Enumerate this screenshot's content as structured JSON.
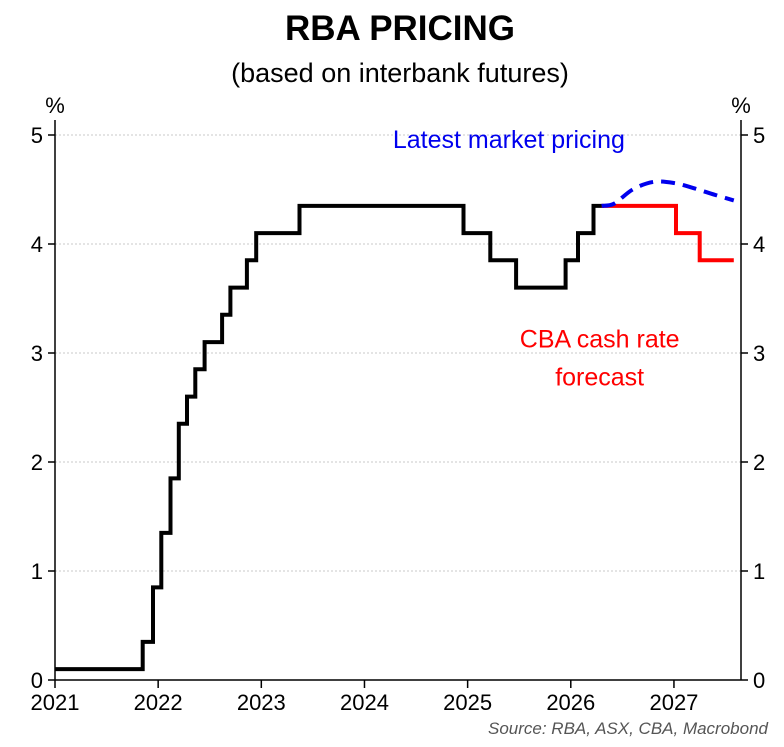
{
  "chart_data": {
    "type": "line",
    "title": "RBA PRICING",
    "subtitle": "(based on interbank futures)",
    "ylabel_left": "%",
    "ylabel_right": "%",
    "ylim": [
      0,
      5
    ],
    "yticks": [
      0,
      1,
      2,
      3,
      4,
      5
    ],
    "xlim": [
      2021.0,
      2027.65
    ],
    "xticks": [
      {
        "label": "2021",
        "value": 2021.0
      },
      {
        "label": "2022",
        "value": 2022.0
      },
      {
        "label": "2023",
        "value": 2023.0
      },
      {
        "label": "2024",
        "value": 2024.0
      },
      {
        "label": "2025",
        "value": 2025.0
      },
      {
        "label": "2026",
        "value": 2026.0
      },
      {
        "label": "2027",
        "value": 2027.0
      }
    ],
    "grid": "horizontal-dotted",
    "source": "Source: RBA, ASX, CBA, Macrobond",
    "annotations": [
      {
        "text": "Latest market pricing",
        "color": "#0000ee",
        "x": 2025.4,
        "y": 4.88
      },
      {
        "text": "CBA cash rate",
        "color": "#ff0000",
        "x": 2026.28,
        "y": 3.05
      },
      {
        "text": "forecast",
        "color": "#ff0000",
        "x": 2026.28,
        "y": 2.7
      }
    ],
    "series": [
      {
        "name": "",
        "style": "step",
        "color": "#000000",
        "dash": "",
        "points": [
          [
            2021.0,
            0.1
          ],
          [
            2021.85,
            0.1
          ],
          [
            2021.85,
            0.35
          ],
          [
            2021.95,
            0.35
          ],
          [
            2021.95,
            0.85
          ],
          [
            2022.03,
            0.85
          ],
          [
            2022.03,
            1.35
          ],
          [
            2022.12,
            1.35
          ],
          [
            2022.12,
            1.85
          ],
          [
            2022.2,
            1.85
          ],
          [
            2022.2,
            2.35
          ],
          [
            2022.28,
            2.35
          ],
          [
            2022.28,
            2.6
          ],
          [
            2022.36,
            2.6
          ],
          [
            2022.36,
            2.85
          ],
          [
            2022.45,
            2.85
          ],
          [
            2022.45,
            3.1
          ],
          [
            2022.62,
            3.1
          ],
          [
            2022.62,
            3.35
          ],
          [
            2022.7,
            3.35
          ],
          [
            2022.7,
            3.6
          ],
          [
            2022.86,
            3.6
          ],
          [
            2022.86,
            3.85
          ],
          [
            2022.95,
            3.85
          ],
          [
            2022.95,
            4.1
          ],
          [
            2023.37,
            4.1
          ],
          [
            2023.37,
            4.35
          ],
          [
            2024.96,
            4.35
          ],
          [
            2024.96,
            4.1
          ],
          [
            2025.22,
            4.1
          ],
          [
            2025.22,
            3.85
          ],
          [
            2025.47,
            3.85
          ],
          [
            2025.47,
            3.6
          ],
          [
            2025.95,
            3.6
          ],
          [
            2025.95,
            3.85
          ],
          [
            2026.07,
            3.85
          ],
          [
            2026.07,
            4.1
          ],
          [
            2026.22,
            4.1
          ],
          [
            2026.22,
            4.35
          ],
          [
            2026.32,
            4.35
          ]
        ]
      },
      {
        "name": "",
        "style": "step",
        "color": "#ff0000",
        "dash": "",
        "points": [
          [
            2026.3,
            4.35
          ],
          [
            2027.02,
            4.35
          ],
          [
            2027.02,
            4.1
          ],
          [
            2027.25,
            4.1
          ],
          [
            2027.25,
            3.85
          ],
          [
            2027.58,
            3.85
          ]
        ]
      },
      {
        "name": "",
        "style": "smooth",
        "color": "#0000ee",
        "dash": "14,8",
        "points": [
          [
            2026.3,
            4.35
          ],
          [
            2026.42,
            4.37
          ],
          [
            2026.6,
            4.5
          ],
          [
            2026.8,
            4.57
          ],
          [
            2027.0,
            4.56
          ],
          [
            2027.2,
            4.51
          ],
          [
            2027.4,
            4.45
          ],
          [
            2027.58,
            4.4
          ]
        ]
      }
    ]
  }
}
